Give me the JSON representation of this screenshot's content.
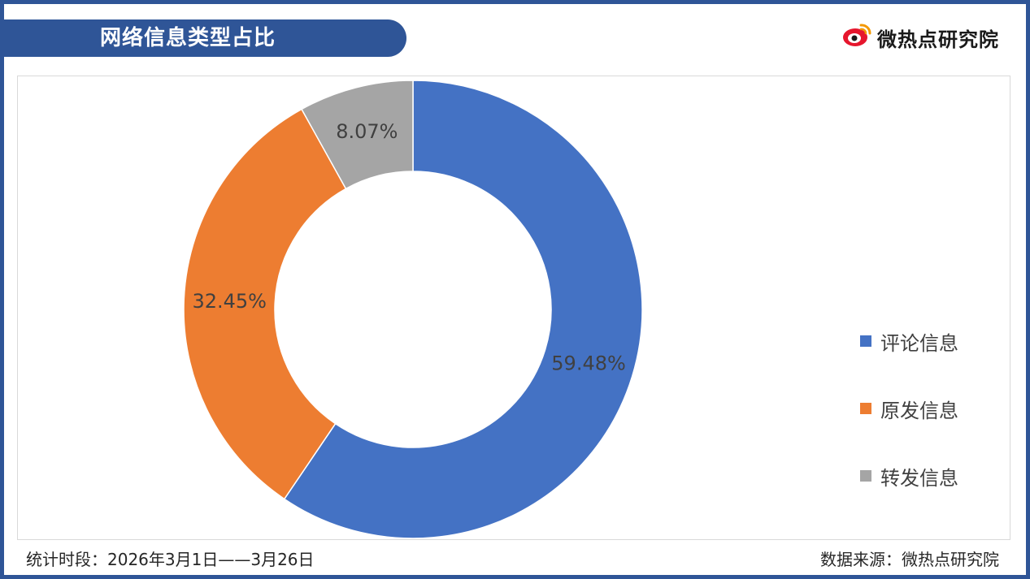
{
  "header": {
    "title": "网络信息类型占比",
    "brand": "微热点研究院",
    "brand_icon": "weibo-eye-icon"
  },
  "footer": {
    "period": "统计时段：2026年3月1日——3月26日",
    "source": "数据来源：微热点研究院"
  },
  "colors": {
    "frame": "#2f5597",
    "评论信息": "#4472c4",
    "原发信息": "#ed7d31",
    "转发信息": "#a5a5a5"
  },
  "chart_data": {
    "type": "pie",
    "donut": true,
    "title": "网络信息类型占比",
    "legend_position": "right",
    "categories": [
      "评论信息",
      "原发信息",
      "转发信息"
    ],
    "values": [
      59.48,
      32.45,
      8.07
    ],
    "data_labels": [
      "59.48%",
      "32.45%",
      "8.07%"
    ],
    "colors": [
      "#4472c4",
      "#ed7d31",
      "#a5a5a5"
    ]
  }
}
